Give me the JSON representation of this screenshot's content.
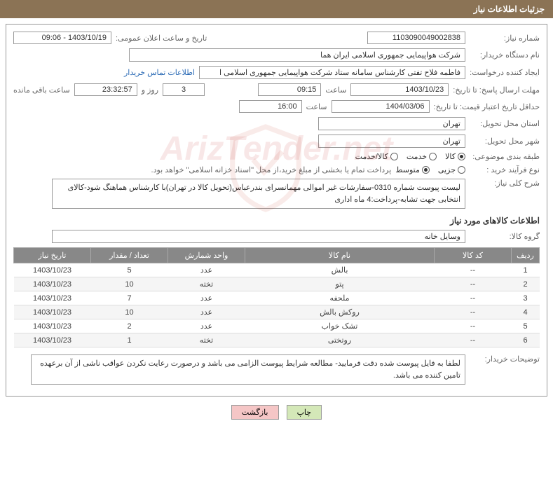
{
  "header": {
    "title": "جزئیات اطلاعات نیاز"
  },
  "fields": {
    "need_number": {
      "label": "شماره نیاز:",
      "value": "1103090049002838"
    },
    "announce_date": {
      "label": "تاریخ و ساعت اعلان عمومی:",
      "value": "1403/10/19 - 09:06"
    },
    "buyer_org": {
      "label": "نام دستگاه خریدار:",
      "value": "شرکت هواپیمایی جمهوری اسلامی ایران هما"
    },
    "requester": {
      "label": "ایجاد کننده درخواست:",
      "value": "فاطمه فلاح تفتی کارشناس سامانه ستاد شرکت هواپیمایی جمهوری اسلامی ا"
    },
    "contact_link": "اطلاعات تماس خریدار",
    "response_deadline": {
      "label": "مهلت ارسال پاسخ: تا تاریخ:",
      "date": "1403/10/23",
      "time_label": "ساعت",
      "time": "09:15",
      "days": "3",
      "days_label": "روز و",
      "countdown": "23:32:57",
      "remaining_label": "ساعت باقی مانده"
    },
    "price_validity": {
      "label": "حداقل تاریخ اعتبار قیمت: تا تاریخ:",
      "date": "1404/03/06",
      "time_label": "ساعت",
      "time": "16:00"
    },
    "province": {
      "label": "استان محل تحویل:",
      "value": "تهران"
    },
    "city": {
      "label": "شهر محل تحویل:",
      "value": "تهران"
    },
    "subject_class": {
      "label": "طبقه بندی موضوعی:"
    },
    "purchase_type": {
      "label": "نوع فرآیند خرید :"
    },
    "purchase_note": "پرداخت تمام یا بخشی از مبلغ خرید،از محل \"اسناد خزانه اسلامی\" خواهد بود.",
    "need_desc": {
      "label": "شرح کلی نیاز:",
      "value": "لیست پیوست شماره 0310-سفارشات غیر اموالی مهمانسرای بندرعباس(تحویل کالا در تهران)با کارشناس هماهنگ شود-کالای انتخابی جهت تشابه-پرداخت:4 ماه اداری"
    },
    "goods_group": {
      "label": "گروه کالا:",
      "value": "وسایل خانه"
    },
    "buyer_notes": {
      "label": "توضیحات خریدار:",
      "value": "لطفا به فایل پیوست شده دقت فرمایید- مطالعه شرایط پیوست الزامی می باشد و درصورت رعایت نکردن عواقب ناشی از آن برعهده تامین کننده می باشد."
    }
  },
  "radios": {
    "subject": [
      {
        "label": "کالا",
        "checked": true
      },
      {
        "label": "خدمت",
        "checked": false
      },
      {
        "label": "کالا/خدمت",
        "checked": false
      }
    ],
    "purchase": [
      {
        "label": "جزیی",
        "checked": false
      },
      {
        "label": "متوسط",
        "checked": true
      }
    ]
  },
  "section_titles": {
    "goods_info": "اطلاعات کالاهای مورد نیاز"
  },
  "table": {
    "headers": [
      "ردیف",
      "کد کالا",
      "نام کالا",
      "واحد شمارش",
      "تعداد / مقدار",
      "تاریخ نیاز"
    ],
    "rows": [
      [
        "1",
        "--",
        "بالش",
        "عدد",
        "5",
        "1403/10/23"
      ],
      [
        "2",
        "--",
        "پتو",
        "تخته",
        "10",
        "1403/10/23"
      ],
      [
        "3",
        "--",
        "ملحفه",
        "عدد",
        "7",
        "1403/10/23"
      ],
      [
        "4",
        "--",
        "روکش بالش",
        "عدد",
        "10",
        "1403/10/23"
      ],
      [
        "5",
        "--",
        "تشک خواب",
        "عدد",
        "2",
        "1403/10/23"
      ],
      [
        "6",
        "--",
        "روتختی",
        "تخته",
        "1",
        "1403/10/23"
      ]
    ]
  },
  "buttons": {
    "print": "چاپ",
    "back": "بازگشت"
  },
  "watermark": "ArizTender.net"
}
